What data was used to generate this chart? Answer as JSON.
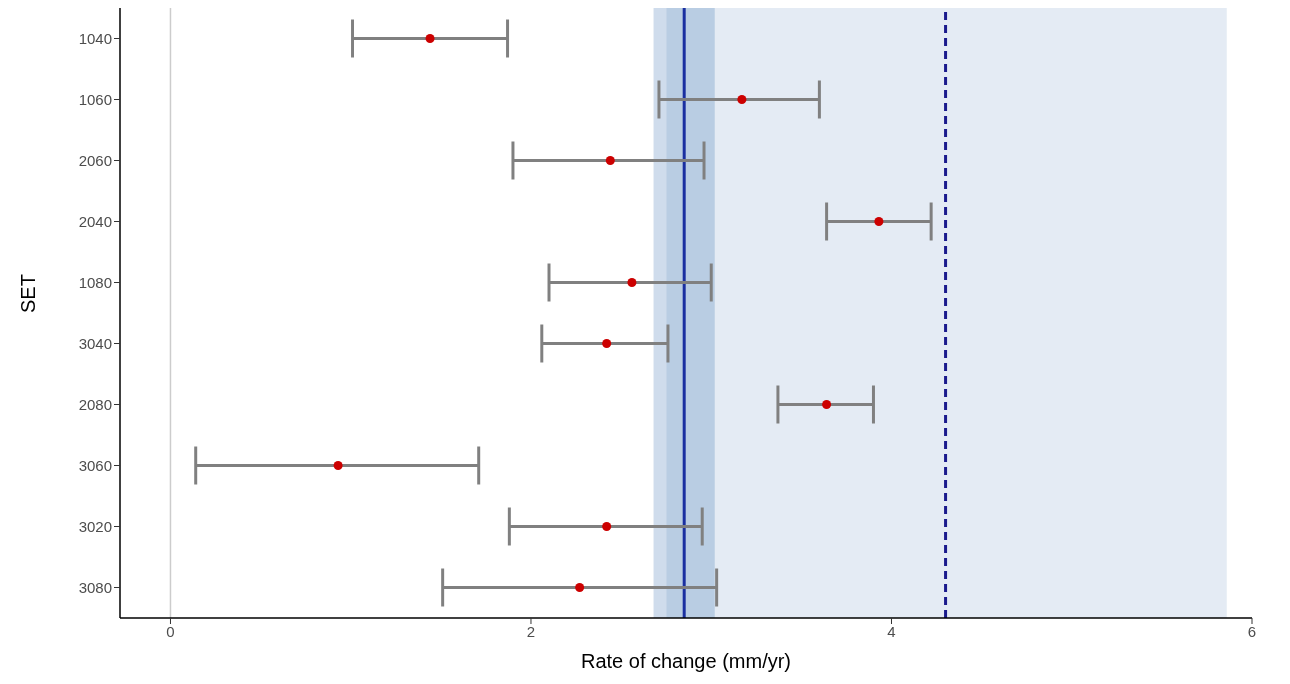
{
  "chart_data": {
    "type": "scatter",
    "xlabel": "Rate of change (mm/yr)",
    "ylabel": "SET",
    "categories": [
      "1040",
      "1060",
      "2060",
      "2040",
      "1080",
      "3040",
      "2080",
      "3060",
      "3020",
      "3080"
    ],
    "series": [
      {
        "color": "#cc0000",
        "values": [
          1.44,
          3.17,
          2.44,
          3.93,
          2.56,
          2.42,
          3.64,
          0.93,
          2.42,
          2.27
        ],
        "errors": [
          [
            1.01,
            1.87
          ],
          [
            2.71,
            3.6
          ],
          [
            1.9,
            2.96
          ],
          [
            3.64,
            4.22
          ],
          [
            2.1,
            3.0
          ],
          [
            2.06,
            2.76
          ],
          [
            3.37,
            3.9
          ],
          [
            0.14,
            1.71
          ],
          [
            1.88,
            2.95
          ],
          [
            1.51,
            3.03
          ]
        ]
      }
    ],
    "orientation": "horizontal",
    "xlim": [
      -0.28,
      6.0
    ],
    "xticks": [
      0,
      2,
      4,
      6
    ],
    "grid": false,
    "legend": false,
    "marker": "circle",
    "ref_lines": [
      {
        "axis": "x",
        "value": 0,
        "color": "#cccccc",
        "line_style": "solid"
      },
      {
        "axis": "x",
        "value": 2.85,
        "color": "#1a2fa0",
        "line_style": "solid"
      },
      {
        "axis": "x",
        "value": 4.3,
        "color": "#1a1a8c",
        "line_style": "dashed"
      }
    ],
    "bands": [
      {
        "axis": "x",
        "from": 3.02,
        "to": 5.86,
        "color": "#e4ebf4"
      },
      {
        "axis": "x",
        "from": 2.68,
        "to": 2.75,
        "color": "#cfdcec"
      },
      {
        "axis": "x",
        "from": 2.75,
        "to": 3.02,
        "color": "#b9cde3"
      }
    ]
  }
}
